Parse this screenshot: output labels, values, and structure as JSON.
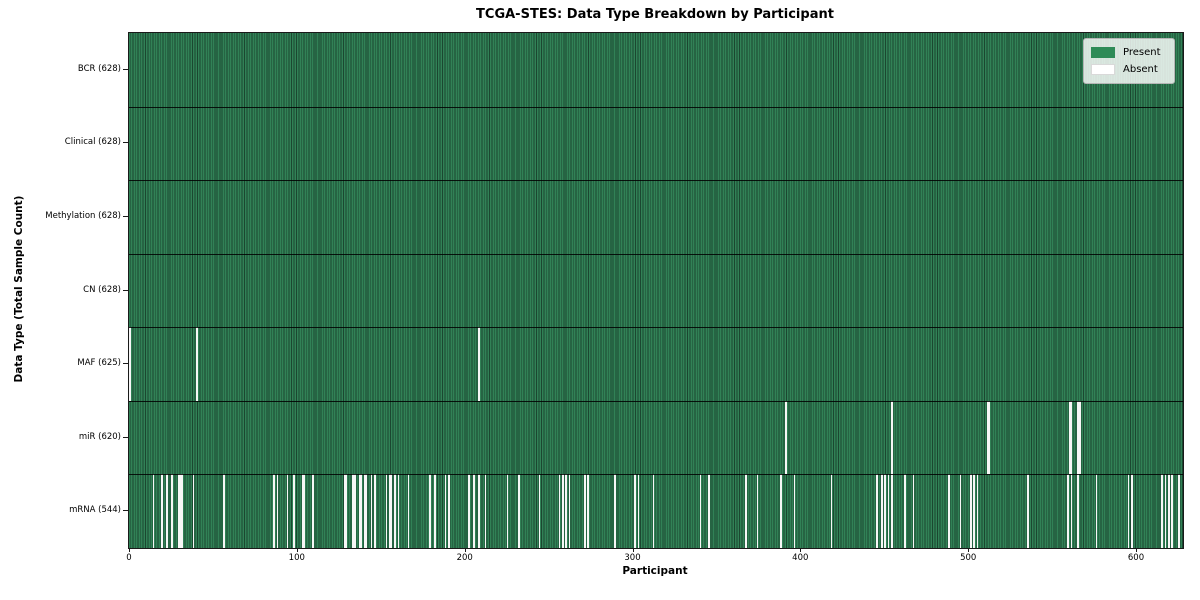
{
  "chart_data": {
    "type": "heatmap",
    "title": "TCGA-STES: Data Type Breakdown by Participant",
    "xlabel": "Participant",
    "ylabel": "Data Type (Total Sample Count)",
    "n_participants": 628,
    "x_ticks": [
      0,
      100,
      200,
      300,
      400,
      500,
      600
    ],
    "grid": false,
    "legend_position": "upper right",
    "legend": [
      {
        "label": "Present",
        "color": "#2e8b57"
      },
      {
        "label": "Absent",
        "color": "#ffffff"
      }
    ],
    "colors": {
      "present": "#318156",
      "cell_edge": "#1b4730",
      "absent": "#f7f7f7",
      "axis": "#1a1a1a"
    },
    "rows": [
      {
        "label": "BCR (628)",
        "data_type": "BCR",
        "present_count": 628,
        "absent_count": 0,
        "absent_participants": []
      },
      {
        "label": "Clinical (628)",
        "data_type": "Clinical",
        "present_count": 628,
        "absent_count": 0,
        "absent_participants": []
      },
      {
        "label": "Methylation (628)",
        "data_type": "Methylation",
        "present_count": 628,
        "absent_count": 0,
        "absent_participants": []
      },
      {
        "label": "CN (628)",
        "data_type": "CN",
        "present_count": 628,
        "absent_count": 0,
        "absent_participants": []
      },
      {
        "label": "MAF (625)",
        "data_type": "MAF",
        "present_count": 625,
        "absent_count": 3,
        "absent_participants": [
          0,
          40,
          208
        ]
      },
      {
        "label": "miR (620)",
        "data_type": "miR",
        "present_count": 620,
        "absent_count": 8,
        "absent_participants": [
          391,
          454,
          511,
          512,
          560,
          561,
          565,
          566
        ]
      },
      {
        "label": "mRNA (544)",
        "data_type": "mRNA",
        "present_count": 544,
        "absent_count": 84,
        "absent_participants": [
          14,
          19,
          22,
          25,
          29,
          30,
          31,
          38,
          56,
          86,
          88,
          94,
          98,
          103,
          104,
          109,
          128,
          129,
          133,
          134,
          137,
          138,
          140,
          141,
          144,
          146,
          153,
          155,
          156,
          158,
          160,
          166,
          179,
          182,
          188,
          190,
          202,
          205,
          208,
          212,
          225,
          232,
          244,
          256,
          258,
          260,
          262,
          271,
          273,
          289,
          301,
          303,
          312,
          340,
          345,
          367,
          374,
          388,
          396,
          418,
          445,
          448,
          450,
          452,
          454,
          462,
          467,
          488,
          495,
          501,
          503,
          505,
          535,
          559,
          561,
          565,
          576,
          595,
          597,
          615,
          617,
          619,
          621,
          625
        ]
      }
    ]
  }
}
